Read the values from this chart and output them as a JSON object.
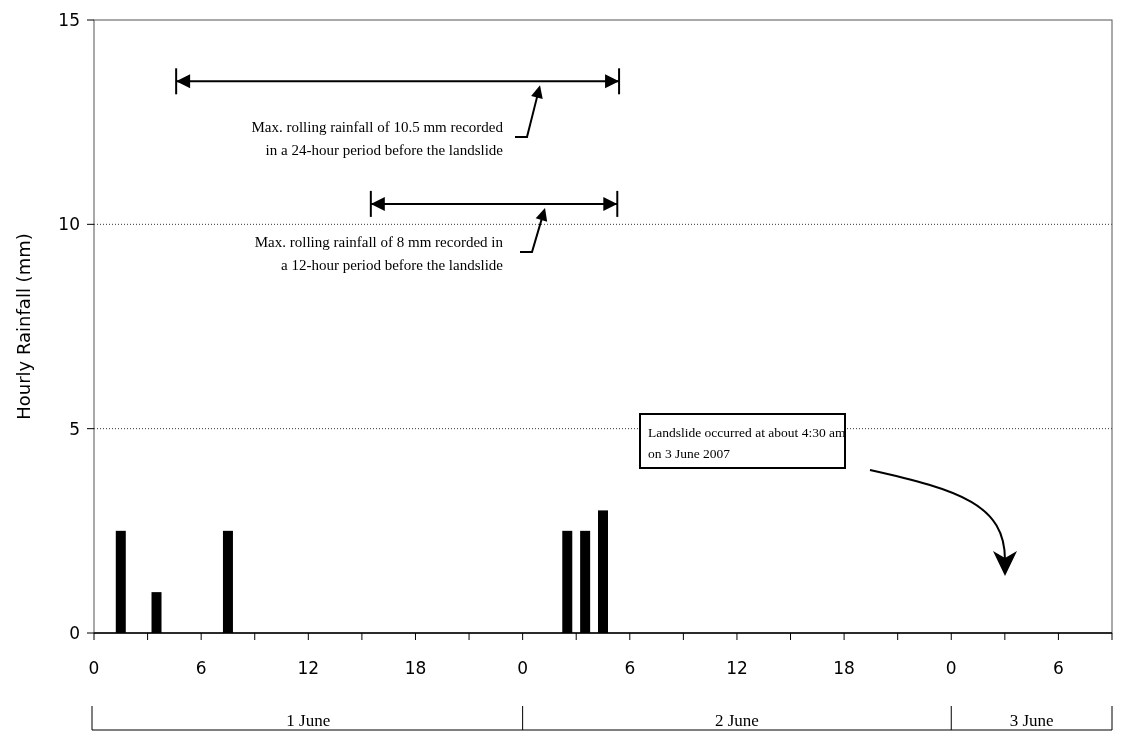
{
  "chart_data": {
    "type": "bar",
    "ylabel": "Hourly Rainfall (mm)",
    "x": [
      "2007-06-01T01:30",
      "2007-06-01T03:30",
      "2007-06-01T07:30",
      "2007-06-02T02:30",
      "2007-06-02T03:30",
      "2007-06-02T04:30"
    ],
    "values": [
      2.5,
      1,
      2.5,
      2.5,
      2.5,
      3
    ],
    "color": "#000000",
    "xlim": [
      "2007-06-01T00:00",
      "2007-06-03T09:00"
    ],
    "xticks": [
      {
        "value": "2007-06-01T00:00",
        "label": "0"
      },
      {
        "value": "2007-06-01T03:00",
        "label": null
      },
      {
        "value": "2007-06-01T06:00",
        "label": "6"
      },
      {
        "value": "2007-06-01T09:00",
        "label": null
      },
      {
        "value": "2007-06-01T12:00",
        "label": "12"
      },
      {
        "value": "2007-06-01T15:00",
        "label": null
      },
      {
        "value": "2007-06-01T18:00",
        "label": "18"
      },
      {
        "value": "2007-06-01T21:00",
        "label": null
      },
      {
        "value": "2007-06-02T00:00",
        "label": "0"
      },
      {
        "value": "2007-06-02T03:00",
        "label": null
      },
      {
        "value": "2007-06-02T06:00",
        "label": "6"
      },
      {
        "value": "2007-06-02T09:00",
        "label": null
      },
      {
        "value": "2007-06-02T12:00",
        "label": "12"
      },
      {
        "value": "2007-06-02T15:00",
        "label": null
      },
      {
        "value": "2007-06-02T18:00",
        "label": "18"
      },
      {
        "value": "2007-06-02T21:00",
        "label": null
      },
      {
        "value": "2007-06-03T00:00",
        "label": "0"
      },
      {
        "value": "2007-06-03T03:00",
        "label": null
      },
      {
        "value": "2007-06-03T06:00",
        "label": "6"
      },
      {
        "value": "2007-06-03T09:00",
        "label": null
      }
    ],
    "ylim": [
      0,
      15
    ],
    "yticks": [
      0,
      5,
      10,
      15
    ],
    "grid": "y",
    "line_style": "dotted",
    "annotations": [
      "Max. rolling rainfall of 10.5 mm recorded\nin a 24-hour period before the landslide",
      "Max. rolling rainfall of 8 mm recorded in\na 12-hour period before the landslide",
      "Landslide occurred at about 4:30 am\non 3 June 2007",
      "1 June",
      "2 June",
      "3 June"
    ]
  }
}
